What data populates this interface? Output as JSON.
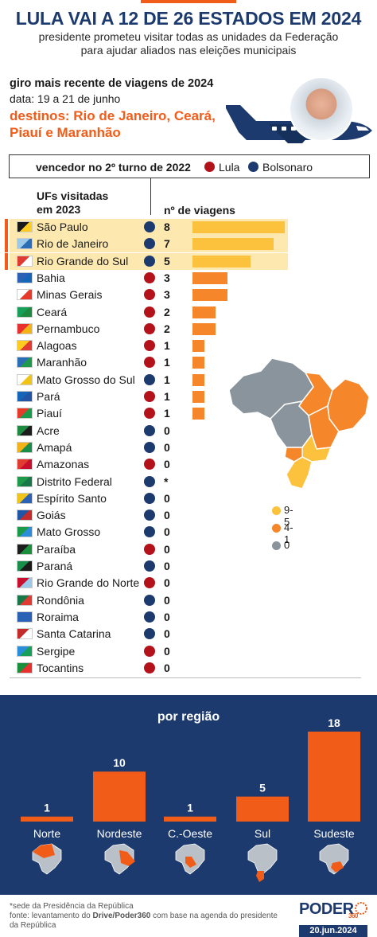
{
  "header": {
    "title": "LULA VAI A 12 DE 26 ESTADOS EM 2024",
    "subtitle_line1": "presidente prometeu visitar todas as unidades da Federação",
    "subtitle_line2": "para ajudar aliados nas eleições municipais"
  },
  "trip": {
    "heading": "giro mais recente de viagens de 2024",
    "dates": "data: 19 a 21 de junho",
    "destinations_line1": "destinos: Rio de Janeiro, Ceará,",
    "destinations_line2": "Piauí e Maranhão"
  },
  "legend": {
    "title": "vencedor no 2º turno de 2022",
    "lula": "Lula",
    "bolsonaro": "Bolsonaro"
  },
  "table_header": {
    "states_line1": "UFs visitadas",
    "states_line2": "em 2023",
    "trips": "nº de viagens"
  },
  "colors": {
    "lula": "#b3121b",
    "bolsonaro": "#1d3a6e",
    "bar_high": "#fcc23d",
    "bar_mid": "#f5862a",
    "bar_zero": "#8a949c",
    "accent": "#f25c19",
    "highlight": "#fde9b0",
    "navy": "#1d3a6e"
  },
  "chart_data": [
    {
      "type": "bar",
      "orientation": "horizontal",
      "xlabel": "nº de viagens",
      "ylabel": "UFs visitadas em 2023",
      "rows": [
        {
          "state": "São Paulo",
          "trips": 8,
          "trips_label": "8",
          "winner": "bolsonaro",
          "highlight": true
        },
        {
          "state": "Rio de Janeiro",
          "trips": 7,
          "trips_label": "7",
          "winner": "bolsonaro",
          "highlight": true
        },
        {
          "state": "Rio Grande do Sul",
          "trips": 5,
          "trips_label": "5",
          "winner": "bolsonaro",
          "highlight": true
        },
        {
          "state": "Bahia",
          "trips": 3,
          "trips_label": "3",
          "winner": "lula"
        },
        {
          "state": "Minas Gerais",
          "trips": 3,
          "trips_label": "3",
          "winner": "lula"
        },
        {
          "state": "Ceará",
          "trips": 2,
          "trips_label": "2",
          "winner": "lula"
        },
        {
          "state": "Pernambuco",
          "trips": 2,
          "trips_label": "2",
          "winner": "lula"
        },
        {
          "state": "Alagoas",
          "trips": 1,
          "trips_label": "1",
          "winner": "lula"
        },
        {
          "state": "Maranhão",
          "trips": 1,
          "trips_label": "1",
          "winner": "lula"
        },
        {
          "state": "Mato Grosso do Sul",
          "trips": 1,
          "trips_label": "1",
          "winner": "bolsonaro"
        },
        {
          "state": "Pará",
          "trips": 1,
          "trips_label": "1",
          "winner": "lula"
        },
        {
          "state": "Piauí",
          "trips": 1,
          "trips_label": "1",
          "winner": "lula"
        },
        {
          "state": "Acre",
          "trips": 0,
          "trips_label": "0",
          "winner": "bolsonaro"
        },
        {
          "state": "Amapá",
          "trips": 0,
          "trips_label": "0",
          "winner": "bolsonaro"
        },
        {
          "state": "Amazonas",
          "trips": 0,
          "trips_label": "0",
          "winner": "lula"
        },
        {
          "state": "Distrito Federal",
          "trips": null,
          "trips_label": "*",
          "winner": "bolsonaro"
        },
        {
          "state": "Espírito Santo",
          "trips": 0,
          "trips_label": "0",
          "winner": "bolsonaro"
        },
        {
          "state": "Goiás",
          "trips": 0,
          "trips_label": "0",
          "winner": "bolsonaro"
        },
        {
          "state": "Mato Grosso",
          "trips": 0,
          "trips_label": "0",
          "winner": "bolsonaro"
        },
        {
          "state": "Paraíba",
          "trips": 0,
          "trips_label": "0",
          "winner": "lula"
        },
        {
          "state": "Paraná",
          "trips": 0,
          "trips_label": "0",
          "winner": "bolsonaro"
        },
        {
          "state": "Rio Grande do Norte",
          "trips": 0,
          "trips_label": "0",
          "winner": "lula"
        },
        {
          "state": "Rondônia",
          "trips": 0,
          "trips_label": "0",
          "winner": "bolsonaro"
        },
        {
          "state": "Roraima",
          "trips": 0,
          "trips_label": "0",
          "winner": "bolsonaro"
        },
        {
          "state": "Santa Catarina",
          "trips": 0,
          "trips_label": "0",
          "winner": "bolsonaro"
        },
        {
          "state": "Sergipe",
          "trips": 0,
          "trips_label": "0",
          "winner": "lula"
        },
        {
          "state": "Tocantins",
          "trips": 0,
          "trips_label": "0",
          "winner": "lula"
        }
      ],
      "xlim": [
        0,
        8
      ]
    },
    {
      "type": "bar",
      "title": "por região",
      "categories": [
        "Norte",
        "Nordeste",
        "C.-Oeste",
        "Sul",
        "Sudeste"
      ],
      "values": [
        1,
        10,
        1,
        5,
        18
      ],
      "ylim": [
        0,
        18
      ]
    }
  ],
  "map_legend": {
    "high": "9-5",
    "mid": "4-1",
    "zero": "0"
  },
  "footer": {
    "note": "*sede da Presidência da República",
    "source_prefix": "fonte: levantamento do ",
    "source_bold": "Drive/Poder360",
    "source_suffix": " com base na agenda do presidente da República",
    "brand": "PODER",
    "brand_number": "360",
    "date": "20.jun.2024"
  }
}
